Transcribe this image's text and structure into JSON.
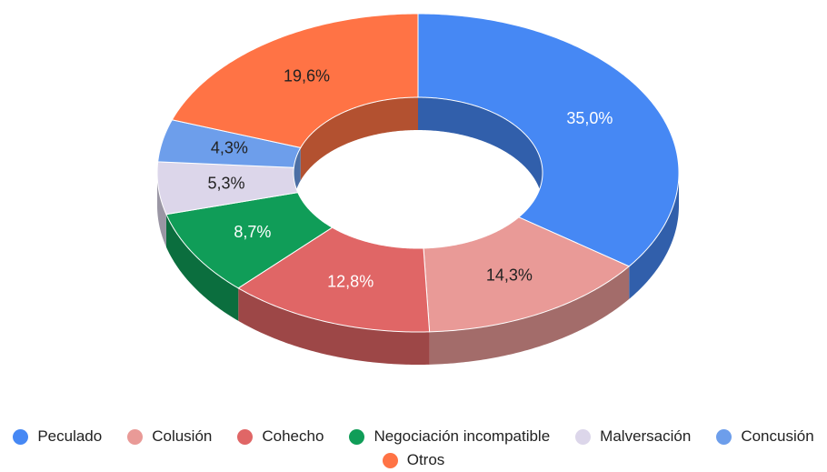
{
  "chart_data": {
    "type": "pie3d_donut",
    "categories": [
      "Peculado",
      "Colusión",
      "Cohecho",
      "Negociación incompatible",
      "Malversación",
      "Concusión",
      "Otros"
    ],
    "values": [
      35.0,
      14.3,
      12.8,
      8.7,
      5.3,
      4.3,
      19.6
    ],
    "value_labels": [
      "35,0%",
      "14,3%",
      "12,8%",
      "8,7%",
      "5,3%",
      "4,3%",
      "19,6%"
    ],
    "colors": [
      "#4688f4",
      "#e99a97",
      "#e06666",
      "#109d58",
      "#dcd6ea",
      "#6d9eeb",
      "#ff7345"
    ],
    "legend": "bottom"
  }
}
